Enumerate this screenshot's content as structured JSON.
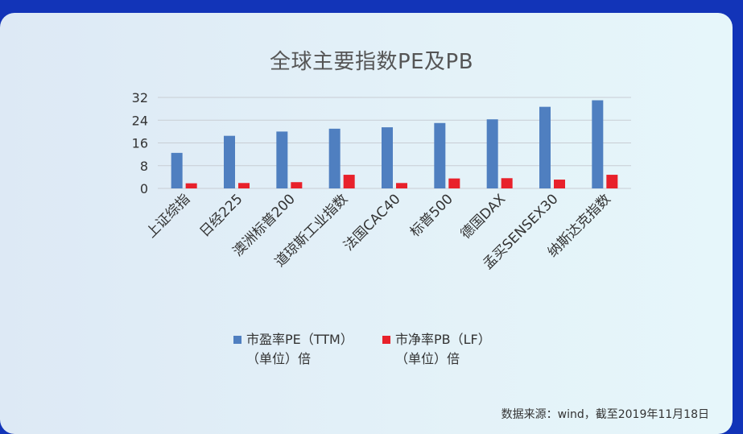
{
  "chart_data": {
    "type": "bar",
    "title": "全球主要指数PE及PB",
    "categories": [
      "上证综指",
      "日经225",
      "澳洲标普200",
      "道琼斯工业指数",
      "法国CAC40",
      "标普500",
      "德国DAX",
      "孟买SENSEX30",
      "纳斯达克指数"
    ],
    "series": [
      {
        "name": "市盈率PE（TTM）（单位）倍",
        "color": "#4f7fc0",
        "values": [
          12.5,
          18.5,
          20.0,
          21.0,
          21.5,
          23.0,
          24.3,
          28.7,
          31.0
        ]
      },
      {
        "name": "市净率PB（LF）（单位）倍",
        "color": "#e8212b",
        "values": [
          1.8,
          1.9,
          2.2,
          4.8,
          1.9,
          3.5,
          3.6,
          3.1,
          4.8
        ]
      }
    ],
    "yticks": [
      "0",
      "8",
      "16",
      "24",
      "32"
    ],
    "ylim": [
      0,
      32
    ],
    "grid": true,
    "legend_position": "bottom"
  },
  "legend": [
    {
      "label": "市盈率PE（TTM）\n（单位）倍",
      "color": "#4f7fc0"
    },
    {
      "label": "市净率PB（LF）\n（单位）倍",
      "color": "#e8212b"
    }
  ],
  "source": "数据来源：wind，截至2019年11月18日"
}
